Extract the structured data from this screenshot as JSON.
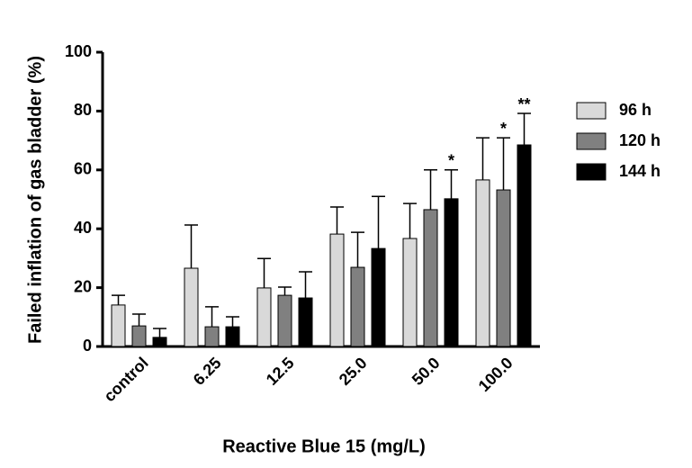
{
  "chart_data": {
    "type": "bar",
    "x_label": "Reactive Blue 15 (mg/L)",
    "y_label": "Failed inflation of gas bladder (%)",
    "categories": [
      "control",
      "6.25",
      "12.5",
      "25.0",
      "50.0",
      "100.0"
    ],
    "series": [
      {
        "name": "96 h",
        "color": "#d9d9d9",
        "values": [
          14.1,
          26.6,
          19.9,
          38.2,
          36.7,
          56.6
        ],
        "errors": [
          3.3,
          14.7,
          10.0,
          9.2,
          11.9,
          14.3
        ],
        "annotations": [
          null,
          null,
          null,
          null,
          null,
          null
        ]
      },
      {
        "name": "120 h",
        "color": "#808080",
        "values": [
          7.0,
          6.7,
          17.4,
          26.9,
          46.5,
          53.2
        ],
        "errors": [
          4.0,
          6.8,
          2.8,
          11.9,
          13.5,
          17.7
        ],
        "annotations": [
          null,
          null,
          null,
          null,
          null,
          "*"
        ]
      },
      {
        "name": "144 h",
        "color": "#000000",
        "values": [
          3.1,
          6.7,
          16.5,
          33.3,
          50.2,
          68.5
        ],
        "errors": [
          3.0,
          3.4,
          8.9,
          17.7,
          9.8,
          10.7
        ],
        "annotations": [
          null,
          null,
          null,
          null,
          "*",
          "**"
        ]
      }
    ],
    "ylim": [
      0,
      100
    ],
    "yticks": [
      0,
      20,
      40,
      60,
      80,
      100
    ],
    "grid": false,
    "legend": "right"
  }
}
